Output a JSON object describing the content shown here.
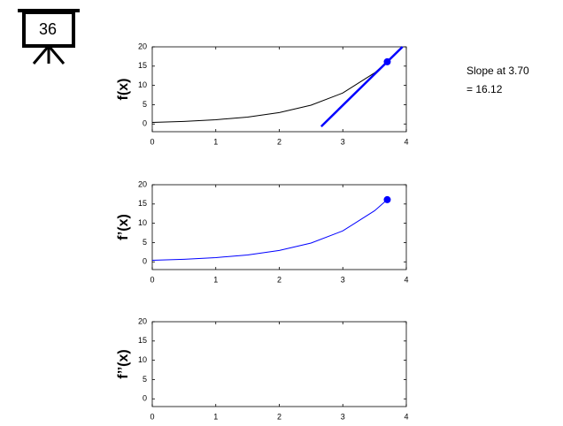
{
  "badge": "36",
  "annotation": [
    "Slope at 3.70",
    "= 16.12"
  ],
  "chart_data": [
    {
      "type": "line",
      "ylabel": "f(x)",
      "xlim": [
        0,
        4
      ],
      "xticks": [
        0,
        1,
        2,
        3,
        4
      ],
      "ylim": [
        -2,
        20
      ],
      "yticks": [
        0,
        5,
        10,
        15,
        20
      ],
      "series": [
        {
          "style": "line",
          "color": "#000000",
          "width": 1,
          "x": [
            0,
            0.5,
            1,
            1.5,
            2,
            2.5,
            3,
            3.5,
            3.7
          ],
          "values": [
            0.4,
            0.66,
            1.09,
            1.79,
            2.96,
            4.87,
            8.03,
            13.25,
            16.12
          ]
        },
        {
          "style": "line",
          "color": "#0000ff",
          "width": 2.5,
          "x": [
            2.66,
            3.94
          ],
          "values": [
            -0.65,
            20
          ]
        },
        {
          "style": "marker",
          "color": "#0000ff",
          "x": [
            3.7
          ],
          "values": [
            16.12
          ]
        }
      ]
    },
    {
      "type": "line",
      "ylabel": "f’(x)",
      "xlim": [
        0,
        4
      ],
      "xticks": [
        0,
        1,
        2,
        3,
        4
      ],
      "ylim": [
        -2,
        20
      ],
      "yticks": [
        0,
        5,
        10,
        15,
        20
      ],
      "series": [
        {
          "style": "line",
          "color": "#0000ff",
          "width": 1,
          "x": [
            0,
            0.5,
            1,
            1.5,
            2,
            2.5,
            3,
            3.5,
            3.7
          ],
          "values": [
            0.4,
            0.66,
            1.09,
            1.79,
            2.96,
            4.87,
            8.03,
            13.25,
            16.12
          ]
        },
        {
          "style": "marker",
          "color": "#0000ff",
          "x": [
            3.7
          ],
          "values": [
            16.12
          ]
        }
      ]
    },
    {
      "type": "line",
      "ylabel": "f’’(x)",
      "xlim": [
        0,
        4
      ],
      "xticks": [
        0,
        1,
        2,
        3,
        4
      ],
      "ylim": [
        -2,
        20
      ],
      "yticks": [
        0,
        5,
        10,
        15,
        20
      ],
      "series": []
    }
  ]
}
